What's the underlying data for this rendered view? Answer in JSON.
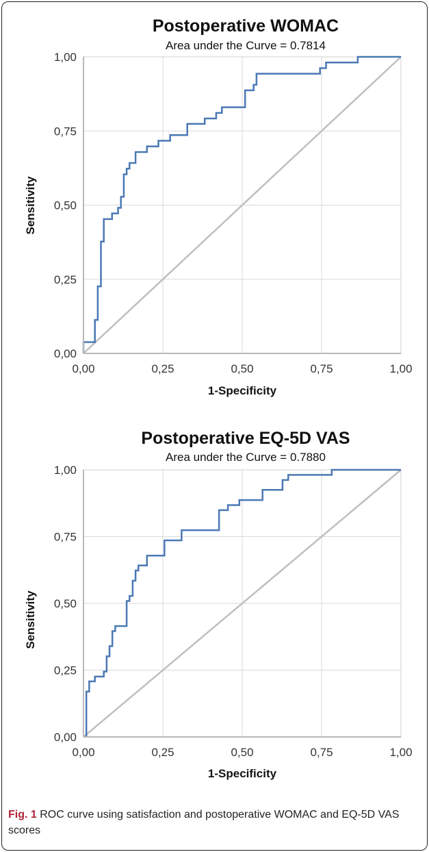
{
  "chart_data": [
    {
      "type": "line",
      "title": "Postoperative WOMAC",
      "subtitle": "Area under the Curve = 0.7814",
      "xlabel": "1-Specificity",
      "ylabel": "Sensitivity",
      "xlim": [
        0,
        1
      ],
      "ylim": [
        0,
        1
      ],
      "grid": true,
      "x_ticks": [
        "0,00",
        "0,25",
        "0,50",
        "0,75",
        "1,00"
      ],
      "y_ticks": [
        "0,00",
        "0,25",
        "0,50",
        "0,75",
        "1,00"
      ],
      "diagonal_reference": true,
      "colors": {
        "curve": "#4a78b4",
        "reference": "#bfbfbf"
      },
      "series": [
        {
          "x": [
            0,
            0,
            0.036,
            0.036,
            0.045,
            0.045,
            0.055,
            0.055,
            0.064,
            0.064,
            0.09,
            0.09,
            0.109,
            0.109,
            0.118,
            0.118,
            0.127,
            0.127,
            0.136,
            0.136,
            0.145,
            0.145,
            0.164,
            0.164,
            0.182,
            0.182,
            0.2,
            0.2,
            0.218,
            0.218,
            0.236,
            0.236,
            0.273,
            0.273,
            0.327,
            0.327,
            0.382,
            0.382,
            0.418,
            0.418,
            0.436,
            0.436,
            0.464,
            0.464,
            0.509,
            0.509,
            0.536,
            0.536,
            0.545,
            0.545,
            0.745,
            0.745,
            0.764,
            0.764,
            0.864,
            0.864,
            1
          ],
          "y": [
            0,
            0.038,
            0.038,
            0.113,
            0.113,
            0.226,
            0.226,
            0.377,
            0.377,
            0.453,
            0.453,
            0.472,
            0.472,
            0.491,
            0.491,
            0.528,
            0.528,
            0.604,
            0.604,
            0.623,
            0.623,
            0.642,
            0.642,
            0.679,
            0.679,
            0.679,
            0.679,
            0.698,
            0.698,
            0.698,
            0.698,
            0.717,
            0.717,
            0.736,
            0.736,
            0.774,
            0.774,
            0.792,
            0.792,
            0.811,
            0.811,
            0.83,
            0.83,
            0.83,
            0.83,
            0.887,
            0.887,
            0.906,
            0.906,
            0.943,
            0.943,
            0.962,
            0.962,
            0.981,
            0.981,
            1,
            1
          ]
        }
      ]
    },
    {
      "type": "line",
      "title": "Postoperative EQ-5D VAS",
      "subtitle": "Area under the Curve = 0.7880",
      "xlabel": "1-Specificity",
      "ylabel": "Sensitivity",
      "xlim": [
        0,
        1
      ],
      "ylim": [
        0,
        1
      ],
      "grid": true,
      "x_ticks": [
        "0,00",
        "0,25",
        "0,50",
        "0,75",
        "1,00"
      ],
      "y_ticks": [
        "0,00",
        "0,25",
        "0,50",
        "0,75",
        "1,00"
      ],
      "diagonal_reference": true,
      "colors": {
        "curve": "#4a78b4",
        "reference": "#bfbfbf"
      },
      "series": [
        {
          "x": [
            0.009,
            0.009,
            0.018,
            0.018,
            0.036,
            0.036,
            0.064,
            0.064,
            0.073,
            0.073,
            0.082,
            0.082,
            0.091,
            0.091,
            0.1,
            0.1,
            0.109,
            0.109,
            0.136,
            0.136,
            0.145,
            0.145,
            0.155,
            0.155,
            0.164,
            0.164,
            0.173,
            0.173,
            0.182,
            0.182,
            0.2,
            0.2,
            0.255,
            0.255,
            0.309,
            0.309,
            0.427,
            0.427,
            0.455,
            0.455,
            0.491,
            0.491,
            0.564,
            0.564,
            0.627,
            0.627,
            0.645,
            0.645,
            0.782,
            0.782,
            1
          ],
          "y": [
            0,
            0.17,
            0.17,
            0.208,
            0.208,
            0.226,
            0.226,
            0.245,
            0.245,
            0.302,
            0.302,
            0.34,
            0.34,
            0.396,
            0.396,
            0.415,
            0.415,
            0.415,
            0.415,
            0.509,
            0.509,
            0.528,
            0.528,
            0.585,
            0.585,
            0.623,
            0.623,
            0.642,
            0.642,
            0.642,
            0.642,
            0.679,
            0.679,
            0.736,
            0.736,
            0.774,
            0.774,
            0.849,
            0.849,
            0.868,
            0.868,
            0.887,
            0.887,
            0.925,
            0.925,
            0.962,
            0.962,
            0.981,
            0.981,
            1,
            1
          ]
        }
      ]
    }
  ],
  "caption": {
    "label": "Fig. 1",
    "text": " ROC curve using satisfaction and postoperative WOMAC and EQ-5D VAS scores"
  }
}
